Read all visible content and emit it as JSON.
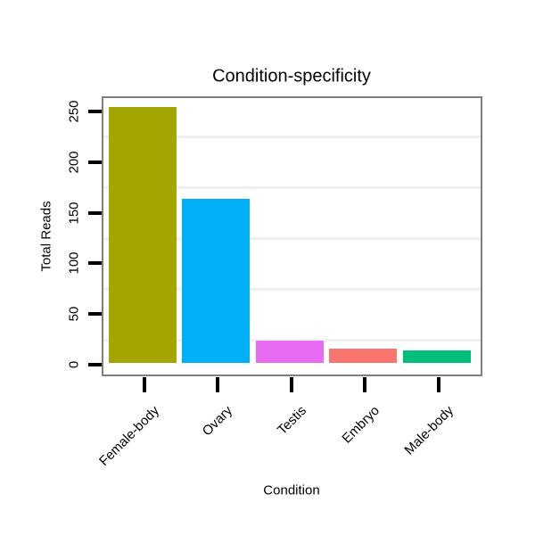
{
  "chart_data": {
    "type": "bar",
    "title": "Condition-specificity",
    "xlabel": "Condition",
    "ylabel": "Total Reads",
    "categories": [
      "Female-body",
      "Ovary",
      "Testis",
      "Embryo",
      "Male-body"
    ],
    "values": [
      253,
      162,
      22,
      14,
      12
    ],
    "bar_colors": [
      "#A3A500",
      "#00B0F6",
      "#E76BF3",
      "#F8766D",
      "#00BF7D"
    ],
    "y_ticks": [
      0,
      50,
      100,
      150,
      200,
      250
    ],
    "minor_gridlines": [
      25,
      75,
      125,
      175,
      225
    ],
    "ylim": [
      0,
      253
    ],
    "xlim_categories": 5,
    "grid": "minor-horizontal-only",
    "legend": "none",
    "gridline_color": "#f0f0f0",
    "plot_border_color": "#7f7f7f",
    "tick_color": "#000000",
    "background_color": "#ffffff"
  }
}
